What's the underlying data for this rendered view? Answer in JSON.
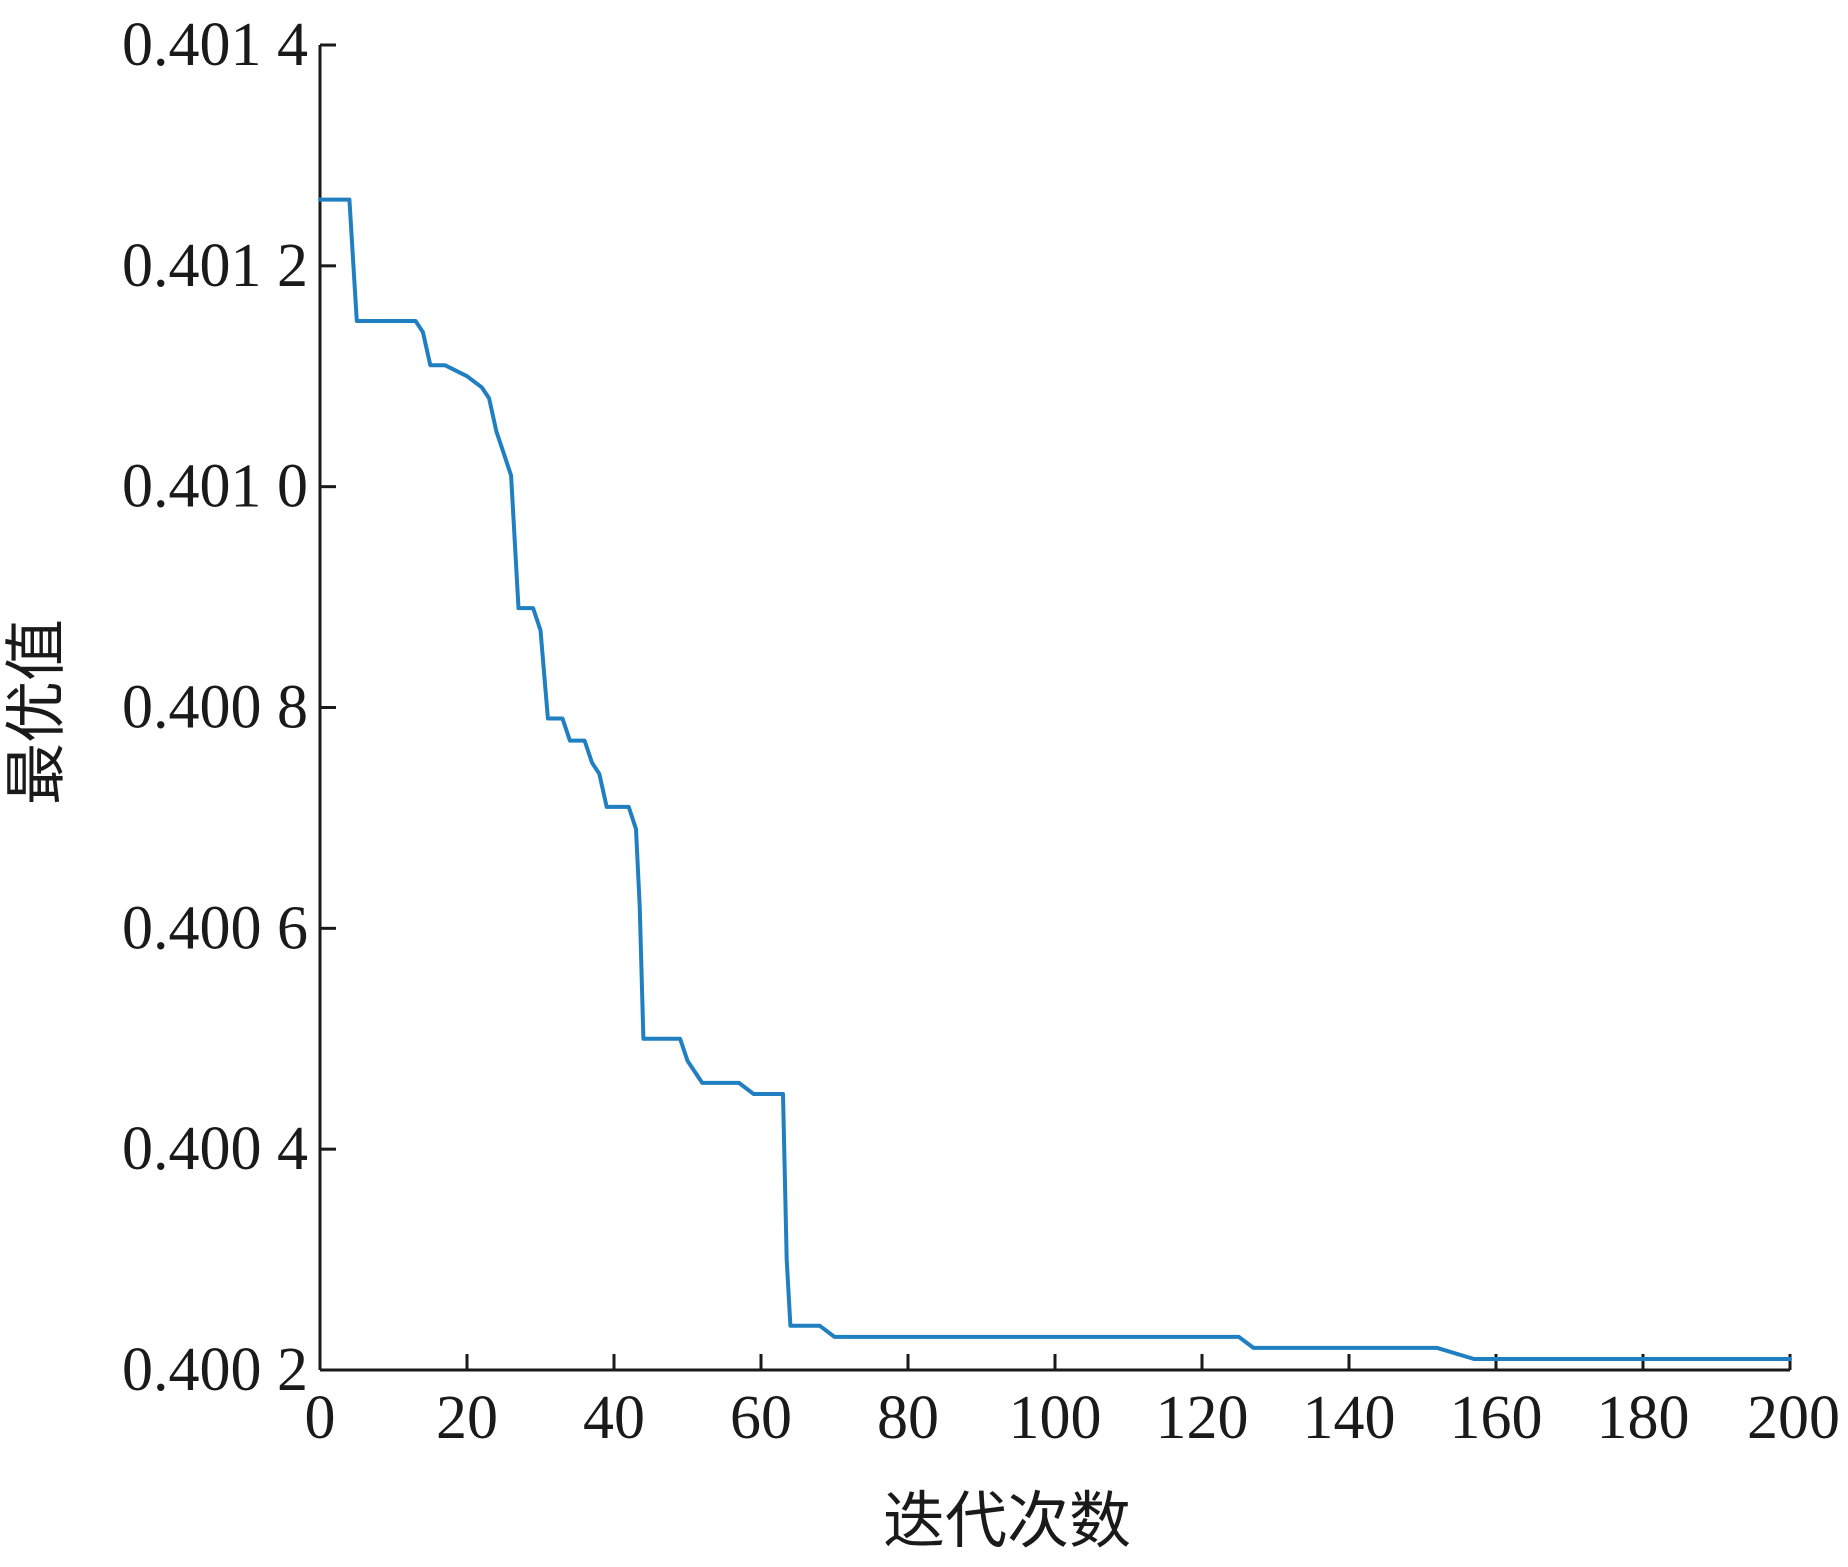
{
  "chart_data": {
    "type": "line",
    "xlabel": "迭代次数",
    "ylabel": "最优值",
    "xlim": [
      0,
      200
    ],
    "ylim": [
      0.4002,
      0.4014
    ],
    "x_ticks": [
      0,
      20,
      40,
      60,
      80,
      100,
      120,
      140,
      160,
      180,
      200
    ],
    "x_tick_labels": [
      "0",
      "20",
      "40",
      "60",
      "80",
      "100",
      "120",
      "140",
      "160",
      "180",
      "200"
    ],
    "y_ticks": [
      0.4002,
      0.4004,
      0.4006,
      0.4008,
      0.401,
      0.4012,
      0.4014
    ],
    "y_tick_labels": [
      "0.400 2",
      "0.400 4",
      "0.400 6",
      "0.400 8",
      "0.401 0",
      "0.401 2",
      "0.401 4"
    ],
    "grid": false,
    "line_color": "#1f7fc0",
    "series": [
      {
        "x": [
          0,
          4,
          5,
          13,
          14,
          15,
          17,
          20,
          22,
          23,
          24,
          25,
          26,
          26.5,
          27,
          29,
          30,
          31,
          33,
          34,
          36,
          37,
          38,
          39,
          42,
          43,
          43.5,
          44,
          49,
          50,
          51,
          52,
          57,
          59,
          63,
          63.5,
          64,
          66,
          68,
          70,
          76,
          80,
          90,
          100,
          110,
          125,
          127,
          143,
          146,
          152,
          157,
          160,
          170,
          180,
          190,
          200
        ],
        "y": [
          0.40126,
          0.40126,
          0.40115,
          0.40115,
          0.40114,
          0.40111,
          0.40111,
          0.4011,
          0.40109,
          0.40108,
          0.40105,
          0.40103,
          0.40101,
          0.40095,
          0.40089,
          0.40089,
          0.40087,
          0.40079,
          0.40079,
          0.40077,
          0.40077,
          0.40075,
          0.40074,
          0.40071,
          0.40071,
          0.40069,
          0.40062,
          0.4005,
          0.4005,
          0.40048,
          0.40047,
          0.40046,
          0.40046,
          0.40045,
          0.40045,
          0.4003,
          0.40024,
          0.40024,
          0.40024,
          0.40023,
          0.40023,
          0.40023,
          0.40023,
          0.40023,
          0.40023,
          0.40023,
          0.40022,
          0.40022,
          0.40022,
          0.40022,
          0.40021,
          0.40021,
          0.40021,
          0.40021,
          0.40021,
          0.40021
        ]
      }
    ]
  }
}
